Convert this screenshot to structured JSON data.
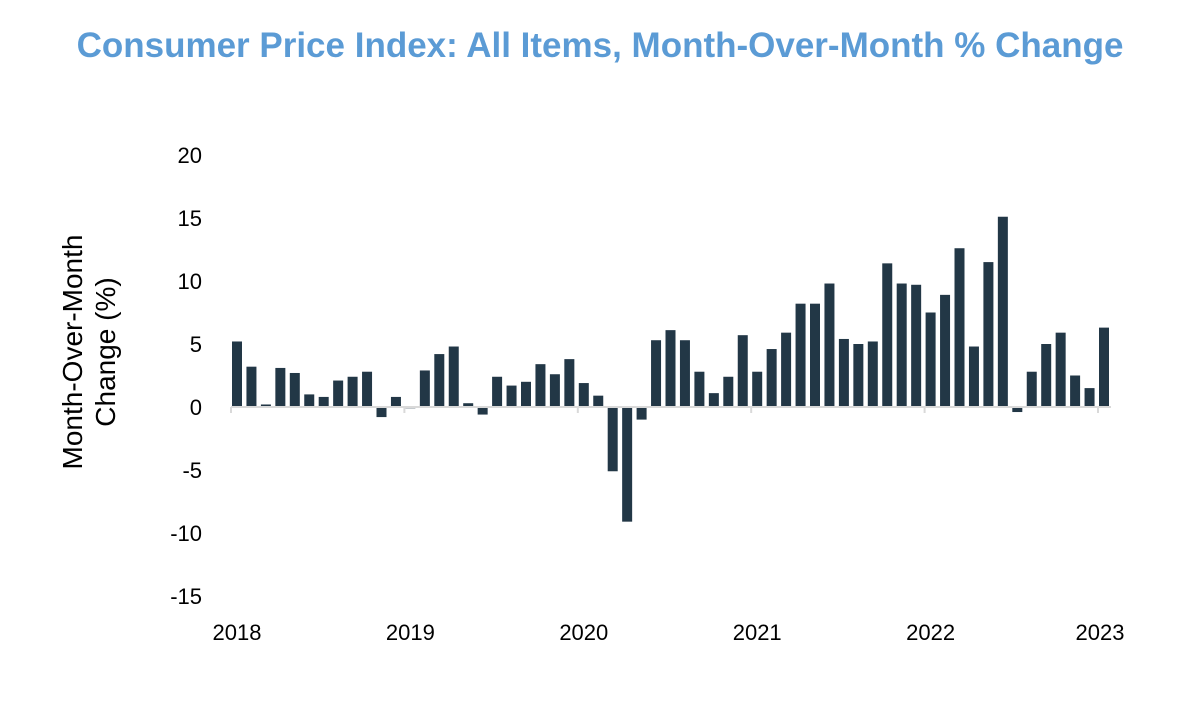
{
  "chart_data": {
    "type": "bar",
    "title": "Consumer Price Index: All Items, Month-Over-Month % Change",
    "xlabel": "",
    "ylabel": [
      "Month-Over-Month",
      "Change (%)"
    ],
    "ylim": [
      -15,
      20
    ],
    "yticks": [
      20,
      15,
      10,
      5,
      0,
      -5,
      -10,
      -15
    ],
    "xticks": [
      "2018",
      "2019",
      "2020",
      "2021",
      "2022",
      "2023"
    ],
    "start": "2018-01",
    "color": "#223746",
    "axis_color": "#d9d9d9",
    "values": [
      5.2,
      3.2,
      0.2,
      3.1,
      2.7,
      1.0,
      0.8,
      2.1,
      2.4,
      2.8,
      -0.8,
      0.8,
      -0.1,
      2.9,
      4.2,
      4.8,
      0.3,
      -0.6,
      2.4,
      1.7,
      2.0,
      3.4,
      2.6,
      3.8,
      1.9,
      0.9,
      -5.1,
      -9.1,
      -1.0,
      5.3,
      6.1,
      5.3,
      2.8,
      1.1,
      2.4,
      5.7,
      2.8,
      4.6,
      5.9,
      8.2,
      8.2,
      9.8,
      5.4,
      5.0,
      5.2,
      11.4,
      9.8,
      9.7,
      7.5,
      8.9,
      12.6,
      4.8,
      11.5,
      15.1,
      -0.4,
      2.8,
      5.0,
      5.9,
      2.5,
      1.5,
      6.3
    ]
  }
}
